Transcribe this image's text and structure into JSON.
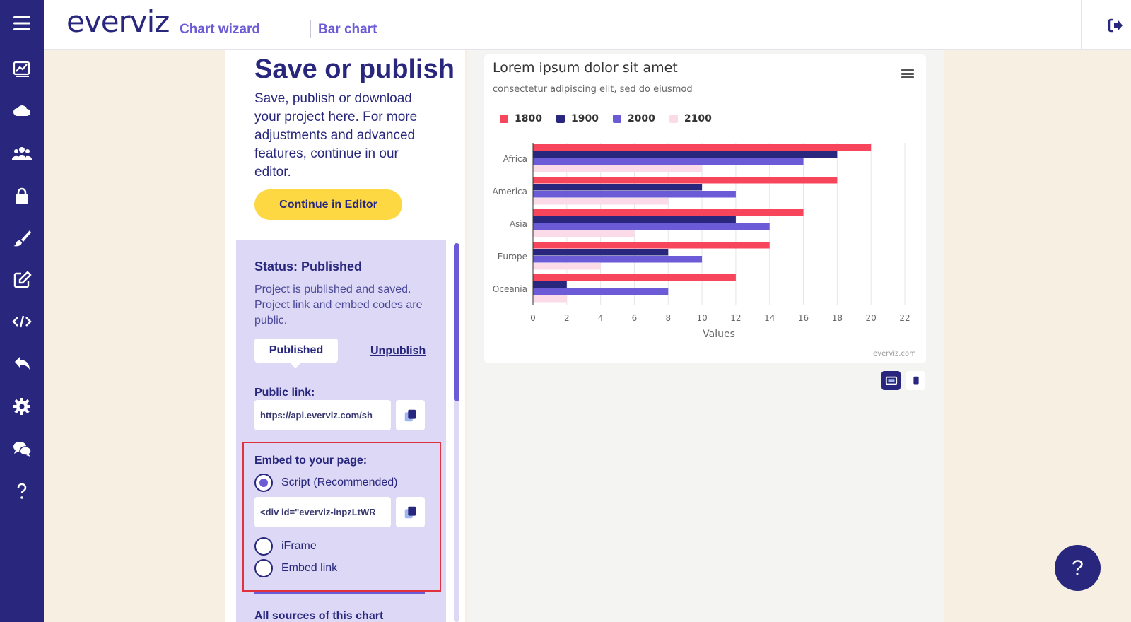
{
  "app": {
    "logo": "everviz",
    "breadcrumbs": [
      "Chart wizard",
      "Bar chart"
    ]
  },
  "sidebar": {
    "icons": [
      "menu-icon",
      "charts-icon",
      "cloud-icon",
      "team-icon",
      "lock-icon",
      "brush-icon",
      "edit-icon",
      "code-icon",
      "undo-icon",
      "settings-icon",
      "chat-icon",
      "help-icon"
    ]
  },
  "panel": {
    "title": "Save or publish",
    "description": "Save, publish or download your project here. For more adjustments and advanced features, continue in our editor.",
    "editor_button": "Continue in Editor",
    "status": {
      "title": "Status: Published",
      "description": "Project is published and saved. Project link and embed codes are public.",
      "published_button": "Published",
      "unpublish_link": "Unpublish"
    },
    "public_link": {
      "label": "Public link:",
      "value": "https://api.everviz.com/sh"
    },
    "embed": {
      "label": "Embed to your page:",
      "options": [
        "Script (Recommended)",
        "iFrame",
        "Embed link"
      ],
      "selected": "Script (Recommended)",
      "code_value": "<div id=\"everviz-inpzLtWR"
    },
    "next_section_partial": "All sources of this chart"
  },
  "chart_data": {
    "type": "bar",
    "title": "Lorem ipsum dolor sit amet",
    "subtitle": "consectetur adipiscing elit, sed do eiusmod",
    "categories": [
      "Africa",
      "America",
      "Asia",
      "Europe",
      "Oceania"
    ],
    "series": [
      {
        "name": "1800",
        "color": "#f7465c",
        "values": [
          20,
          18,
          16,
          14,
          12
        ]
      },
      {
        "name": "1900",
        "color": "#28277d",
        "values": [
          18,
          10,
          12,
          8,
          2
        ]
      },
      {
        "name": "2000",
        "color": "#6b5bd6",
        "values": [
          16,
          12,
          14,
          10,
          8
        ]
      },
      {
        "name": "2100",
        "color": "#fbdbe7",
        "values": [
          10,
          8,
          6,
          4,
          2
        ]
      }
    ],
    "ylabel": "Values",
    "ylim": [
      0,
      22
    ],
    "ticks": [
      "0",
      "2",
      "4",
      "6",
      "8",
      "10",
      "12",
      "14",
      "16",
      "18",
      "20",
      "22"
    ],
    "orientation": "horizontal",
    "grid": true,
    "legend_position": "top-left",
    "credit": "everviz.com"
  },
  "help_fab": "?"
}
